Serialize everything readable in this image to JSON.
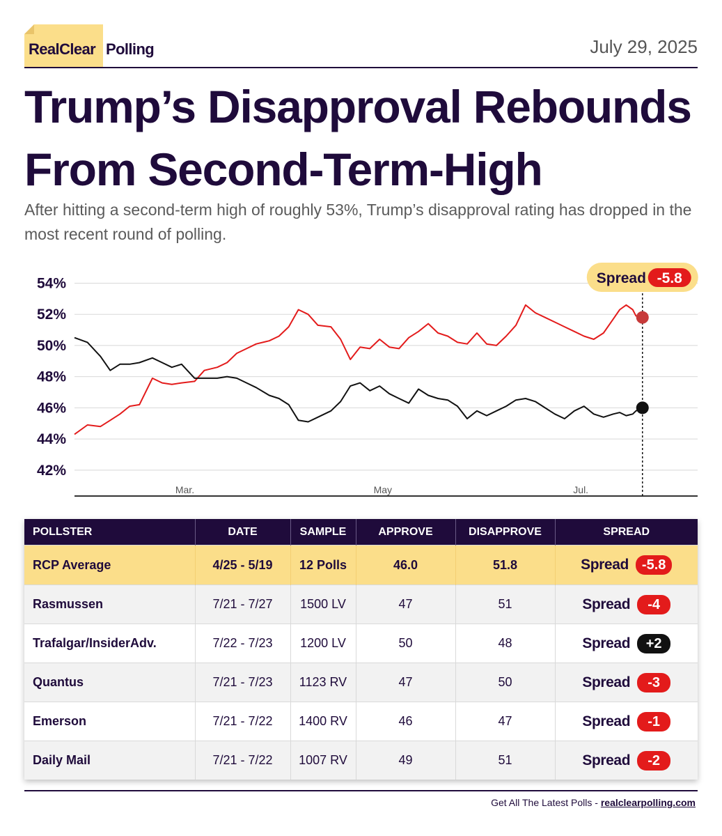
{
  "header": {
    "brand_part1": "RealClear",
    "brand_part2": "Polling",
    "date": "July 29, 2025"
  },
  "title": "Trump’s Disapproval Rebounds From Second-Term-High",
  "subtitle": "After hitting a second-term high of roughly 53%, Trump’s disapproval rating has dropped in the most recent round of polling.",
  "colors": {
    "navy": "#1f0b3b",
    "disapprove": "#e31b1b",
    "approve": "#111111",
    "highlight": "#fbde8a"
  },
  "chart_data": {
    "type": "line",
    "title": "",
    "xlabel": "",
    "ylabel": "",
    "ylim": [
      41.5,
      54.2
    ],
    "x_range_days": [
      0,
      192
    ],
    "yticks": [
      42,
      44,
      46,
      48,
      50,
      52,
      54
    ],
    "ytick_labels": [
      "42%",
      "44%",
      "46%",
      "48%",
      "50%",
      "52%",
      "54%"
    ],
    "xticks": [
      {
        "day": 34,
        "label": "Mar."
      },
      {
        "day": 95,
        "label": "May"
      },
      {
        "day": 156,
        "label": "Jul."
      }
    ],
    "x": [
      0,
      4,
      8,
      11,
      14,
      17,
      20,
      24,
      27,
      30,
      33,
      37,
      40,
      44,
      47,
      50,
      53,
      56,
      60,
      63,
      66,
      69,
      72,
      75,
      79,
      82,
      85,
      88,
      91,
      94,
      97,
      100,
      103,
      106,
      109,
      112,
      115,
      118,
      121,
      124,
      127,
      130,
      133,
      136,
      139,
      142,
      145,
      148,
      151,
      154,
      157,
      160,
      163,
      166,
      168,
      170,
      172,
      173,
      175
    ],
    "series": [
      {
        "name": "Disapprove",
        "color": "#e31b1b",
        "values": [
          44.3,
          44.9,
          44.8,
          45.2,
          45.6,
          46.1,
          46.2,
          47.9,
          47.6,
          47.5,
          47.6,
          47.7,
          48.4,
          48.6,
          48.9,
          49.5,
          49.8,
          50.1,
          50.3,
          50.6,
          51.2,
          52.3,
          52.0,
          51.3,
          51.2,
          50.4,
          49.1,
          49.9,
          49.8,
          50.4,
          49.9,
          49.8,
          50.5,
          50.9,
          51.4,
          50.8,
          50.6,
          50.2,
          50.1,
          50.8,
          50.1,
          50.0,
          50.6,
          51.3,
          52.6,
          52.1,
          51.8,
          51.5,
          51.2,
          50.9,
          50.6,
          50.4,
          50.8,
          51.7,
          52.3,
          52.6,
          52.3,
          51.9,
          51.8
        ]
      },
      {
        "name": "Approve",
        "color": "#111111",
        "values": [
          50.5,
          50.2,
          49.3,
          48.4,
          48.8,
          48.8,
          48.9,
          49.2,
          48.9,
          48.6,
          48.8,
          47.9,
          47.9,
          47.9,
          48.0,
          47.9,
          47.6,
          47.3,
          46.8,
          46.6,
          46.2,
          45.2,
          45.1,
          45.4,
          45.8,
          46.4,
          47.4,
          47.6,
          47.1,
          47.4,
          46.9,
          46.6,
          46.3,
          47.2,
          46.8,
          46.6,
          46.5,
          46.1,
          45.3,
          45.8,
          45.5,
          45.8,
          46.1,
          46.5,
          46.6,
          46.4,
          46.0,
          45.6,
          45.3,
          45.8,
          46.1,
          45.6,
          45.4,
          45.6,
          45.7,
          45.5,
          45.6,
          45.8,
          46.0
        ]
      }
    ],
    "end_values": {
      "disapprove": 51.8,
      "approve": 46.0
    },
    "spread_callout": {
      "label": "Spread",
      "value": "-5.8"
    }
  },
  "table": {
    "headers": [
      "POLLSTER",
      "DATE",
      "SAMPLE",
      "APPROVE",
      "DISAPPROVE",
      "SPREAD"
    ],
    "average": {
      "pollster": "RCP Average",
      "date": "4/25 - 5/19",
      "sample": "12 Polls",
      "approve": "46.0",
      "disapprove": "51.8",
      "spread_label": "Spread",
      "spread": "-5.8",
      "spread_color": "red"
    },
    "rows": [
      {
        "pollster": "Rasmussen",
        "date": "7/21 - 7/27",
        "sample": "1500 LV",
        "approve": "47",
        "disapprove": "51",
        "spread_label": "Spread",
        "spread": "-4",
        "spread_color": "red"
      },
      {
        "pollster": "Trafalgar/InsiderAdv.",
        "date": "7/22 - 7/23",
        "sample": "1200 LV",
        "approve": "50",
        "disapprove": "48",
        "spread_label": "Spread",
        "spread": "+2",
        "spread_color": "black"
      },
      {
        "pollster": "Quantus",
        "date": "7/21 - 7/23",
        "sample": "1123 RV",
        "approve": "47",
        "disapprove": "50",
        "spread_label": "Spread",
        "spread": "-3",
        "spread_color": "red"
      },
      {
        "pollster": "Emerson",
        "date": "7/21 - 7/22",
        "sample": "1400 RV",
        "approve": "46",
        "disapprove": "47",
        "spread_label": "Spread",
        "spread": "-1",
        "spread_color": "red"
      },
      {
        "pollster": "Daily Mail",
        "date": "7/21 - 7/22",
        "sample": "1007 RV",
        "approve": "49",
        "disapprove": "51",
        "spread_label": "Spread",
        "spread": "-2",
        "spread_color": "red"
      }
    ]
  },
  "footer": {
    "prefix": "Get All The Latest Polls  -",
    "site": "realclearpolling.com"
  }
}
